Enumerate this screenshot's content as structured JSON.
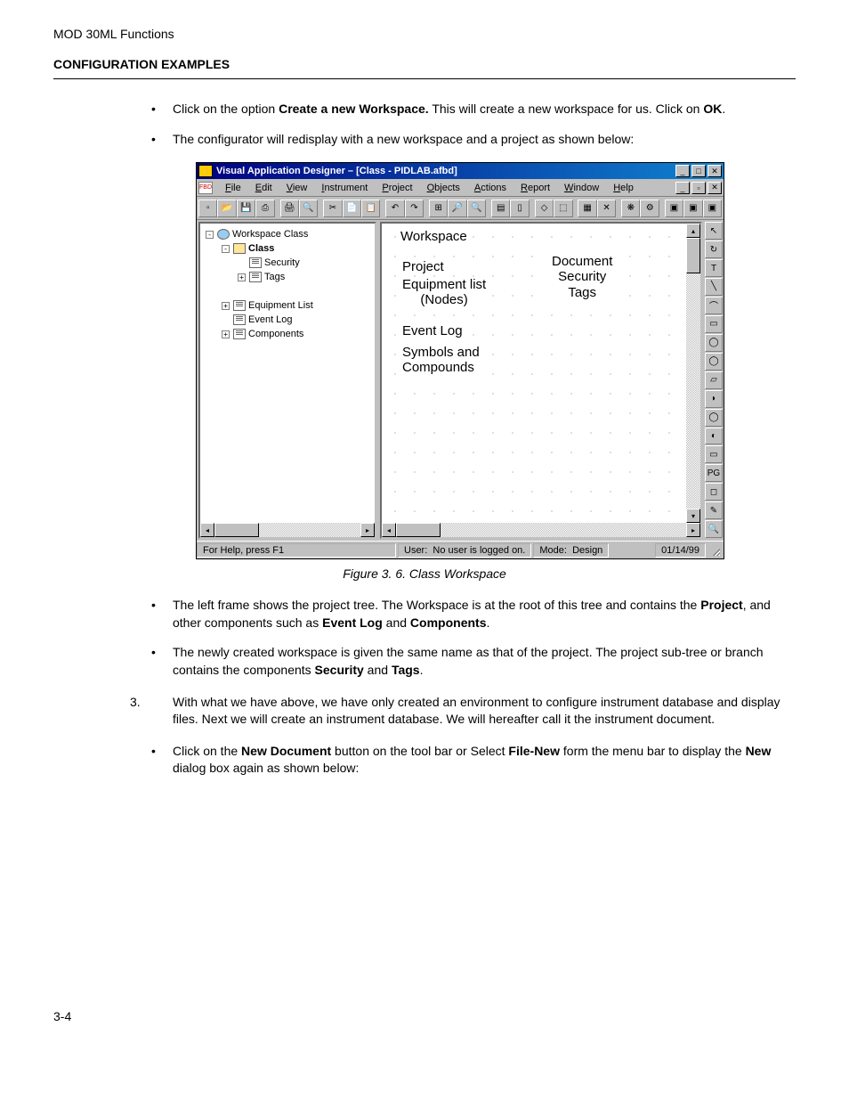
{
  "doc": {
    "header_light": "MOD 30ML Functions",
    "header_bold": "CONFIGURATION EXAMPLES",
    "bullets_top": [
      "Click on the option <b>Create a new Workspace.</b> This will create a new workspace for us. Click on <b>OK</b>.",
      "The configurator will redisplay with a new workspace and a project as shown below:"
    ],
    "figure_caption": "Figure 3. 6. Class Workspace",
    "bullets_mid": [
      "The left frame shows the project tree. The Workspace is at the root of this tree and contains the <b>Project</b>, and other components such as <b>Event Log</b> and <b>Components</b>.",
      "The newly created workspace is given the same name as that of the project. The project sub-tree or branch contains the components <b>Security</b> and <b>Tags</b>."
    ],
    "numbered": {
      "num": "3.",
      "text": "With what we have above, we have only created an environment to configure instrument database and display files. Next we will create an instrument database. We will hereafter call it the instrument document."
    },
    "bullets_bottom": [
      "Click on the <b>New Document</b> button on the tool bar or Select <b>File-New</b> form the menu bar to display the <b>New</b> dialog box again as shown below:"
    ],
    "page_num": "3-4"
  },
  "app": {
    "title": "Visual Application Designer – [Class - PIDLAB.afbd]",
    "menus": [
      "File",
      "Edit",
      "View",
      "Instrument",
      "Project",
      "Objects",
      "Actions",
      "Report",
      "Window",
      "Help"
    ],
    "toolbar_glyphs": [
      "▫",
      "📂",
      "💾",
      "⎙",
      " ",
      "🖨",
      "🔍",
      " ",
      "✂",
      "📄",
      "📋",
      " ",
      "↶",
      "↷",
      " ",
      "⊞",
      "🔎",
      "🔍",
      " ",
      "▤",
      "▯",
      " ",
      "◇",
      "⬚",
      " ",
      "▦",
      "✕",
      " ",
      "❋",
      "⚙",
      " ",
      "▣",
      "▣",
      "▣"
    ],
    "right_tools": [
      "↖",
      "↻",
      "T",
      "╲",
      "⌒",
      "▭",
      "◯",
      "◯",
      "▱",
      "◗",
      "◯",
      "◐",
      "▭",
      "PG",
      "◻",
      "✎",
      "🔍"
    ],
    "tree": [
      {
        "indent": 0,
        "toggle": "-",
        "icon": "globe",
        "label": "Workspace Class",
        "bold": false
      },
      {
        "indent": 1,
        "toggle": "-",
        "icon": "folder",
        "label": "Class",
        "bold": true
      },
      {
        "indent": 2,
        "toggle": "",
        "icon": "doc",
        "label": "Security",
        "bold": false
      },
      {
        "indent": 2,
        "toggle": "+",
        "icon": "doc",
        "label": "Tags",
        "bold": false
      },
      {
        "indent": 2,
        "toggle": "",
        "icon": "",
        "label": "",
        "bold": false
      },
      {
        "indent": 1,
        "toggle": "+",
        "icon": "doc",
        "label": "Equipment List",
        "bold": false
      },
      {
        "indent": 1,
        "toggle": "",
        "icon": "doc",
        "label": "Event Log",
        "bold": false
      },
      {
        "indent": 1,
        "toggle": "+",
        "icon": "doc",
        "label": "Components",
        "bold": false
      }
    ],
    "annotations": {
      "workspace": "Workspace",
      "project": "Project",
      "equipment": "Equipment list\n(Nodes)",
      "eventlog": "Event Log",
      "symbols": "Symbols and\nCompounds",
      "document": "Document\nSecurity\nTags"
    },
    "status": {
      "help": "For Help, press F1",
      "user_label": "User:",
      "user_val": "No user is logged on.",
      "mode_label": "Mode:",
      "mode_val": "Design",
      "date": "01/14/99"
    }
  },
  "colors": {
    "titlebar_start": "#000080",
    "titlebar_end": "#1084d0",
    "win_bg": "#c0c0c0"
  }
}
